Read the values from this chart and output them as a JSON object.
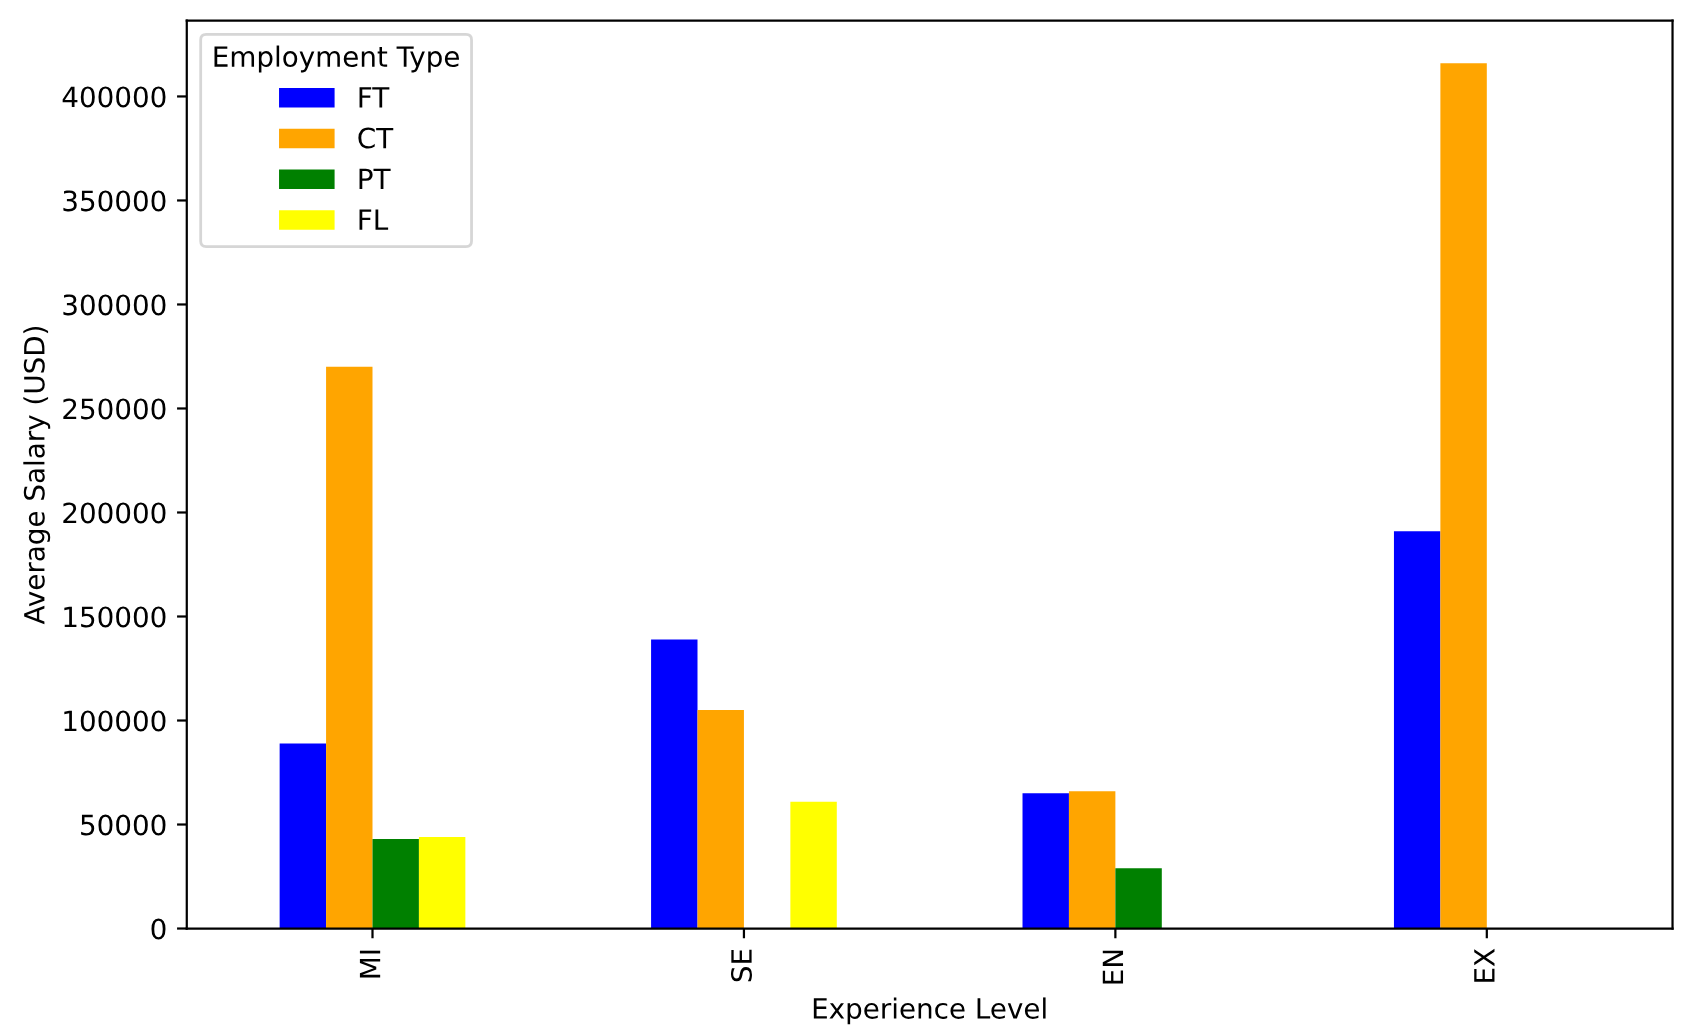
{
  "chart_data": {
    "type": "bar",
    "xlabel": "Experience Level",
    "ylabel": "Average Salary (USD)",
    "legend_title": "Employment Type",
    "legend": "top left",
    "grid": false,
    "categories": [
      "MI",
      "SE",
      "EN",
      "EX"
    ],
    "ylim": [
      0,
      436500
    ],
    "yticks": [
      0,
      50000,
      100000,
      150000,
      200000,
      250000,
      300000,
      350000,
      400000
    ],
    "series": [
      {
        "name": "FT",
        "color": "#0000ff",
        "values": [
          89000,
          139000,
          65000,
          191000
        ]
      },
      {
        "name": "CT",
        "color": "#ffa500",
        "values": [
          270000,
          105000,
          66000,
          416000
        ]
      },
      {
        "name": "PT",
        "color": "#008000",
        "values": [
          43000,
          null,
          29000,
          null
        ]
      },
      {
        "name": "FL",
        "color": "#ffff00",
        "values": [
          44000,
          61000,
          null,
          null
        ]
      }
    ]
  }
}
